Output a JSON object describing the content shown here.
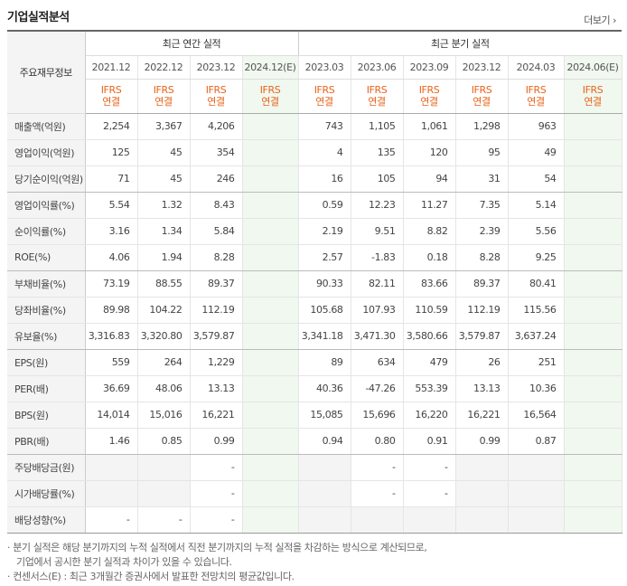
{
  "title": "기업실적분석",
  "more_label": "더보기",
  "more_icon": "chevron-right-icon",
  "row_header_label": "주요재무정보",
  "group_annual": "최근 연간 실적",
  "group_quarter": "최근 분기 실적",
  "periods": [
    "2021.12",
    "2022.12",
    "2023.12",
    "2024.12(E)",
    "2023.03",
    "2023.06",
    "2023.09",
    "2023.12",
    "2024.03",
    "2024.06(E)"
  ],
  "basis_line1": "IFRS",
  "basis_line2": "연결",
  "rows": [
    {
      "label": "매출액(억원)",
      "values": [
        "2,254",
        "3,367",
        "4,206",
        "",
        "743",
        "1,105",
        "1,061",
        "1,298",
        "963",
        ""
      ]
    },
    {
      "label": "영업이익(억원)",
      "values": [
        "125",
        "45",
        "354",
        "",
        "4",
        "135",
        "120",
        "95",
        "49",
        ""
      ]
    },
    {
      "label": "당기순이익(억원)",
      "values": [
        "71",
        "45",
        "246",
        "",
        "16",
        "105",
        "94",
        "31",
        "54",
        ""
      ]
    },
    {
      "label": "영업이익률(%)",
      "values": [
        "5.54",
        "1.32",
        "8.43",
        "",
        "0.59",
        "12.23",
        "11.27",
        "7.35",
        "5.14",
        ""
      ]
    },
    {
      "label": "순이익률(%)",
      "values": [
        "3.16",
        "1.34",
        "5.84",
        "",
        "2.19",
        "9.51",
        "8.82",
        "2.39",
        "5.56",
        ""
      ]
    },
    {
      "label": "ROE(%)",
      "values": [
        "4.06",
        "1.94",
        "8.28",
        "",
        "2.57",
        "-1.83",
        "0.18",
        "8.28",
        "9.25",
        ""
      ]
    },
    {
      "label": "부채비율(%)",
      "values": [
        "73.19",
        "88.55",
        "89.37",
        "",
        "90.33",
        "82.11",
        "83.66",
        "89.37",
        "80.41",
        ""
      ]
    },
    {
      "label": "당좌비율(%)",
      "values": [
        "89.98",
        "104.22",
        "112.19",
        "",
        "105.68",
        "107.93",
        "110.59",
        "112.19",
        "115.56",
        ""
      ]
    },
    {
      "label": "유보율(%)",
      "values": [
        "3,316.83",
        "3,320.80",
        "3,579.87",
        "",
        "3,341.18",
        "3,471.30",
        "3,580.66",
        "3,579.87",
        "3,637.24",
        ""
      ]
    },
    {
      "label": "EPS(원)",
      "values": [
        "559",
        "264",
        "1,229",
        "",
        "89",
        "634",
        "479",
        "26",
        "251",
        ""
      ]
    },
    {
      "label": "PER(배)",
      "values": [
        "36.69",
        "48.06",
        "13.13",
        "",
        "40.36",
        "-47.26",
        "553.39",
        "13.13",
        "10.36",
        ""
      ]
    },
    {
      "label": "BPS(원)",
      "values": [
        "14,014",
        "15,016",
        "16,221",
        "",
        "15,085",
        "15,696",
        "16,220",
        "16,221",
        "16,564",
        ""
      ]
    },
    {
      "label": "PBR(배)",
      "values": [
        "1.46",
        "0.85",
        "0.99",
        "",
        "0.94",
        "0.80",
        "0.91",
        "0.99",
        "0.87",
        ""
      ]
    },
    {
      "label": "주당배당금(원)",
      "values": [
        "",
        "",
        "-",
        "",
        "",
        "-",
        "-",
        "",
        "",
        ""
      ]
    },
    {
      "label": "시가배당률(%)",
      "values": [
        "",
        "",
        "-",
        "",
        "",
        "-",
        "-",
        "",
        "",
        ""
      ]
    },
    {
      "label": "배당성향(%)",
      "values": [
        "-",
        "-",
        "-",
        "",
        "",
        "",
        "",
        "",
        "",
        ""
      ]
    }
  ],
  "notes": {
    "line1": "분기 실적은 해당 분기까지의 누적 실적에서 직전 분기까지의 누적 실적을 차감하는 방식으로 계산되므로,",
    "line2": "기업에서 공시한 분기 실적과 차이가 있을 수 있습니다.",
    "line3": "컨센서스(E) : 최근 3개월간 증권사에서 발표한 전망치의 평균값입니다."
  },
  "colors": {
    "accent": "#e8641b",
    "negative": "#e0201c",
    "estimate_bg": "#f0f8ef",
    "label_bg": "#f4f4f4"
  }
}
